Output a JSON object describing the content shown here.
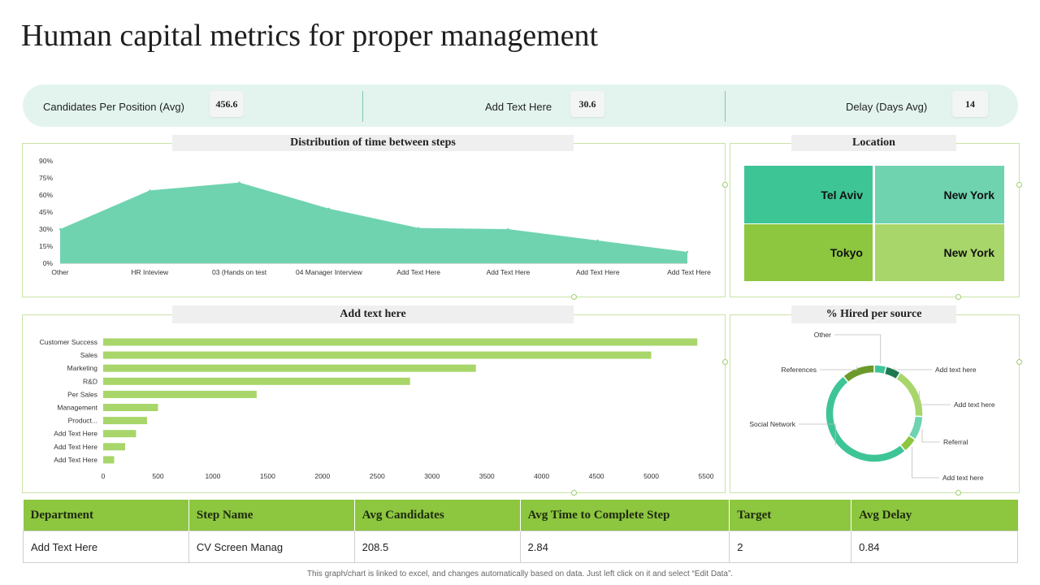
{
  "title": "Human capital metrics for proper management",
  "kpis": [
    {
      "label": "Candidates  Per Position (Avg)",
      "value": "456.6"
    },
    {
      "label": "Add Text Here",
      "value": "30.6"
    },
    {
      "label": "Delay (Days Avg)",
      "value": "14"
    }
  ],
  "panels": {
    "distribution": "Distribution of time between steps",
    "location": "Location",
    "bars": "Add text here",
    "hired": "% Hired per source"
  },
  "locations": [
    {
      "name": "Tel Aviv",
      "color": "#3ec596"
    },
    {
      "name": "New York",
      "color": "#6fd3b0"
    },
    {
      "name": "Tokyo",
      "color": "#8dc63f"
    },
    {
      "name": "New York",
      "color": "#a8d66a"
    }
  ],
  "area_chart": {
    "type": "area",
    "categories": [
      "Other",
      "HR Inteview",
      "03 (Hands on test",
      "04 Manager Interview",
      "Add Text Here",
      "Add Text Here",
      "Add Text Here",
      "Add Text Here"
    ],
    "values": [
      30,
      64,
      71,
      48,
      31,
      30,
      20,
      10
    ],
    "yticks": [
      "0%",
      "15%",
      "30%",
      "45%",
      "60%",
      "75%",
      "90%"
    ],
    "ylim": [
      0,
      90
    ],
    "color": "#6fd3b0"
  },
  "bar_chart": {
    "type": "bar",
    "categories": [
      "Customer Success",
      "Sales",
      "Marketing",
      "R&D",
      "Per Sales",
      "Management",
      "Product...",
      "Add Text Here",
      "Add Text Here",
      "Add Text Here"
    ],
    "values": [
      5420,
      5000,
      3400,
      2800,
      1400,
      500,
      400,
      300,
      200,
      100
    ],
    "xticks": [
      "0",
      "500",
      "1000",
      "1500",
      "2000",
      "2500",
      "3000",
      "3500",
      "4000",
      "4500",
      "5000",
      "5500"
    ],
    "xlim": [
      0,
      5500
    ],
    "color": "#a8d66a"
  },
  "donut_chart": {
    "type": "pie",
    "labels": [
      "Other",
      "Add text here",
      "Add text here",
      "Referral",
      "Add text here",
      "Social Network",
      "References"
    ],
    "values": [
      4,
      5,
      17,
      8,
      5,
      50,
      11
    ],
    "colors": [
      "#3ec596",
      "#1e7a50",
      "#a8d66a",
      "#6fd3b0",
      "#8dc63f",
      "#3ec596",
      "#6b9a2a"
    ]
  },
  "table": {
    "headers": [
      "Department",
      "Step Name",
      "Avg Candidates",
      "Avg Time to Complete Step",
      "Target",
      "Avg Delay"
    ],
    "rows": [
      [
        "Add Text Here",
        "CV Screen Manag",
        "208.5",
        "2.84",
        "2",
        "0.84"
      ]
    ]
  },
  "footnote": "This graph/chart is linked to excel, and changes automatically based on data. Just left click on it and select “Edit Data”."
}
